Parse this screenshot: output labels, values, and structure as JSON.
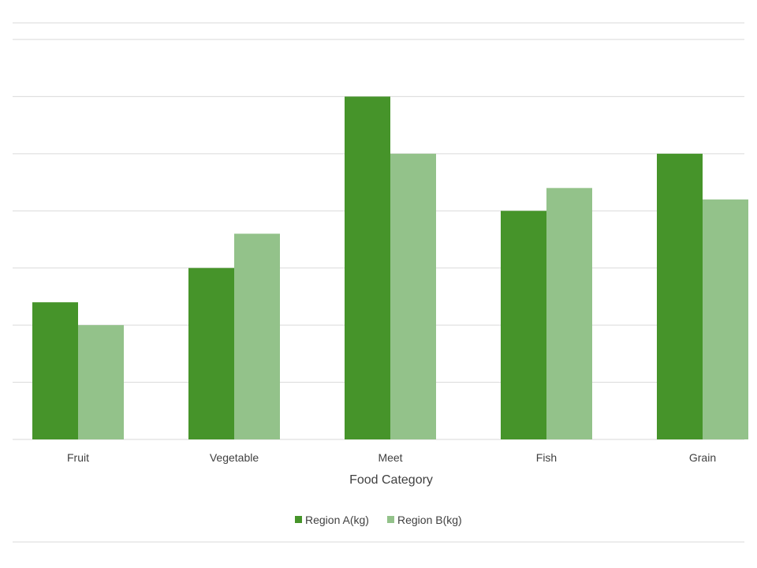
{
  "chart_data": {
    "type": "bar",
    "title": "",
    "xlabel": "Food Category",
    "ylabel": "",
    "categories": [
      "Fruit",
      "Vegetable",
      "Meet",
      "Fish",
      "Grain"
    ],
    "series": [
      {
        "name": "Region A(kg)",
        "color": "#46942A",
        "values": [
          24,
          30,
          60,
          40,
          50
        ]
      },
      {
        "name": "Region B(kg)",
        "color": "#93C28A",
        "values": [
          20,
          36,
          50,
          44,
          42
        ]
      }
    ],
    "ylim": [
      0,
      70
    ],
    "grid": true,
    "y_tick_labels_visible": false,
    "legend": "bottom"
  }
}
